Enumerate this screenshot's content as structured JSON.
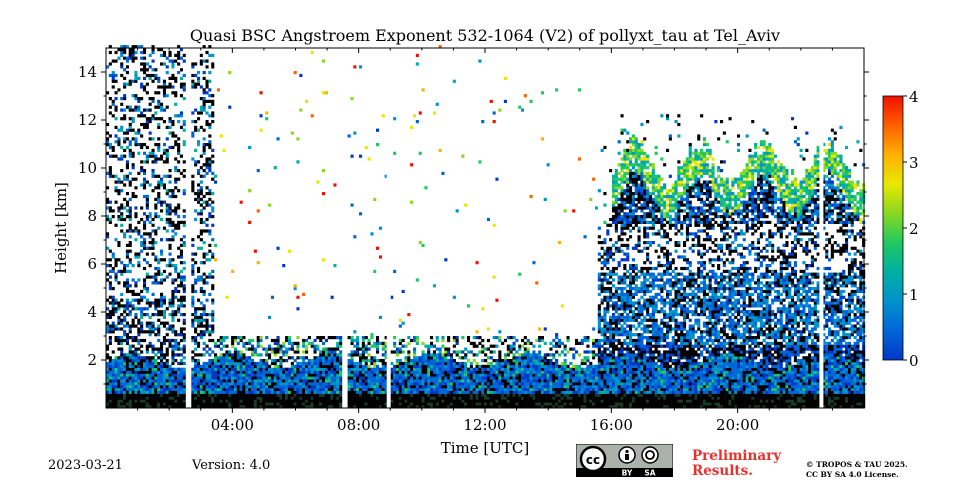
{
  "chart_data": {
    "type": "heatmap",
    "title": "Quasi BSC Angstroem Exponent 532-1064 (V2) of pollyxt_tau at Tel_Aviv",
    "xlabel": "Time [UTC]",
    "ylabel": "Height [km]",
    "xlim_hours": [
      0,
      24
    ],
    "ylim_km": [
      0,
      15
    ],
    "x_ticks": [
      "04:00",
      "08:00",
      "12:00",
      "16:00",
      "20:00"
    ],
    "x_tick_hours": [
      4,
      8,
      12,
      16,
      20
    ],
    "y_ticks": [
      "2",
      "4",
      "6",
      "8",
      "10",
      "12",
      "14"
    ],
    "y_tick_values": [
      2,
      4,
      6,
      8,
      10,
      12,
      14
    ],
    "colorbar": {
      "range": [
        0,
        4
      ],
      "ticks": [
        "0",
        "1",
        "2",
        "3",
        "4"
      ],
      "tick_values": [
        0,
        1,
        2,
        3,
        4
      ],
      "colormap": [
        "#0038c8",
        "#0066d8",
        "#0092cc",
        "#00b0a0",
        "#20c860",
        "#8ad820",
        "#e8e800",
        "#ffb000",
        "#ff6000",
        "#f01000"
      ]
    },
    "gaps_hours": [
      2.6,
      7.55,
      8.95,
      22.65
    ],
    "layers": [
      {
        "name": "surface layer",
        "start": 0,
        "end": 24,
        "bottom_km": 0,
        "top_km": 0.5,
        "value": "dark"
      },
      {
        "name": "boundary layer",
        "start": 0,
        "end": 24,
        "bottom_km": 0.5,
        "top_km": 2.0,
        "value": 0.5
      },
      {
        "name": "mid-level aerosol",
        "start": 15.5,
        "end": 24,
        "bottom_km": 2.5,
        "top_km": 5.5,
        "value": 0.6
      },
      {
        "name": "cirrus",
        "start": 16.0,
        "end": 24,
        "bottom_km": 7.5,
        "top_km": 11.5,
        "value": 0.7
      }
    ]
  },
  "footer": {
    "date": "2023-03-21",
    "version": "Version: 4.0",
    "preliminary_line1": "Preliminary",
    "preliminary_line2": "Results.",
    "copyright_line1": "© TROPOS & TAU 2025.",
    "copyright_line2": "CC BY SA 4.0 License.",
    "license_by": "BY",
    "license_sa": "SA"
  }
}
